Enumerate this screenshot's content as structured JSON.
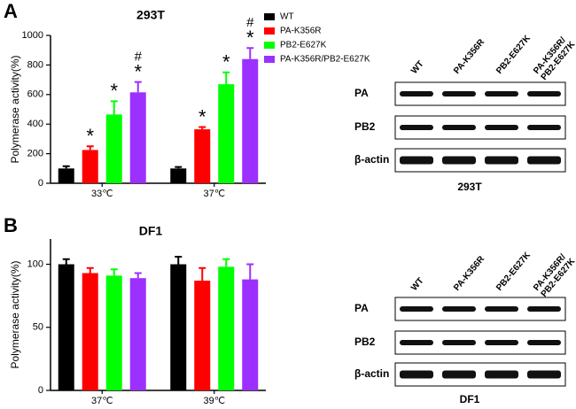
{
  "panels": [
    "A",
    "B"
  ],
  "chart_data": [
    {
      "type": "bar",
      "title": "293T",
      "y_label": "Polymerase activity(%)",
      "categories": [
        "33℃",
        "37℃"
      ],
      "ylim": [
        0,
        1000
      ],
      "yticks": [
        0,
        200,
        400,
        600,
        800,
        1000
      ],
      "legend": true,
      "series": [
        {
          "name": "WT",
          "color": "#000000",
          "values": [
            100,
            100
          ],
          "errors": [
            15,
            10
          ],
          "significance": [
            null,
            null
          ],
          "difference": [
            null,
            null
          ]
        },
        {
          "name": "PA-K356R",
          "color": "#ff0000",
          "values": [
            225,
            365
          ],
          "errors": [
            25,
            15
          ],
          "significance": [
            "*",
            "*"
          ],
          "difference": [
            null,
            null
          ]
        },
        {
          "name": "PB2-E627K",
          "color": "#00ff00",
          "values": [
            465,
            670
          ],
          "errors": [
            90,
            80
          ],
          "significance": [
            "*",
            "*"
          ],
          "difference": [
            null,
            null
          ]
        },
        {
          "name": "PA-K356R/PB2-E627K",
          "color": "#9b30ff",
          "values": [
            615,
            840
          ],
          "errors": [
            70,
            75
          ],
          "significance": [
            "*",
            "*"
          ],
          "difference": [
            "#",
            "#"
          ]
        }
      ]
    },
    {
      "type": "bar",
      "title": "DF1",
      "y_label": "Polymerase activity(%)",
      "categories": [
        "37℃",
        "39℃"
      ],
      "ylim": [
        0,
        120
      ],
      "yticks": [
        0,
        50,
        100
      ],
      "legend": false,
      "series": [
        {
          "name": "WT",
          "color": "#000000",
          "values": [
            100,
            100
          ],
          "errors": [
            4,
            6
          ]
        },
        {
          "name": "PA-K356R",
          "color": "#ff0000",
          "values": [
            93,
            87
          ],
          "errors": [
            4,
            10
          ]
        },
        {
          "name": "PB2-E627K",
          "color": "#00ff00",
          "values": [
            91,
            98
          ],
          "errors": [
            5,
            6
          ]
        },
        {
          "name": "PA-K356R/PB2-E627K",
          "color": "#9b30ff",
          "values": [
            89,
            88
          ],
          "errors": [
            4,
            12
          ]
        }
      ]
    }
  ],
  "blots": [
    {
      "lanes": [
        [
          "WT"
        ],
        [
          "PA-K356R"
        ],
        [
          "PB2-E627K"
        ],
        [
          "PA-K356R/",
          "PB2-E627K"
        ]
      ],
      "rows": [
        "PA",
        "PB2",
        "β-actin"
      ],
      "caption": "293T"
    },
    {
      "lanes": [
        [
          "WT"
        ],
        [
          "PA-K356R"
        ],
        [
          "PB2-E627K"
        ],
        [
          "PA-K356R/",
          "PB2-E627K"
        ]
      ],
      "rows": [
        "PA",
        "PB2",
        "β-actin"
      ],
      "caption": "DF1"
    }
  ]
}
